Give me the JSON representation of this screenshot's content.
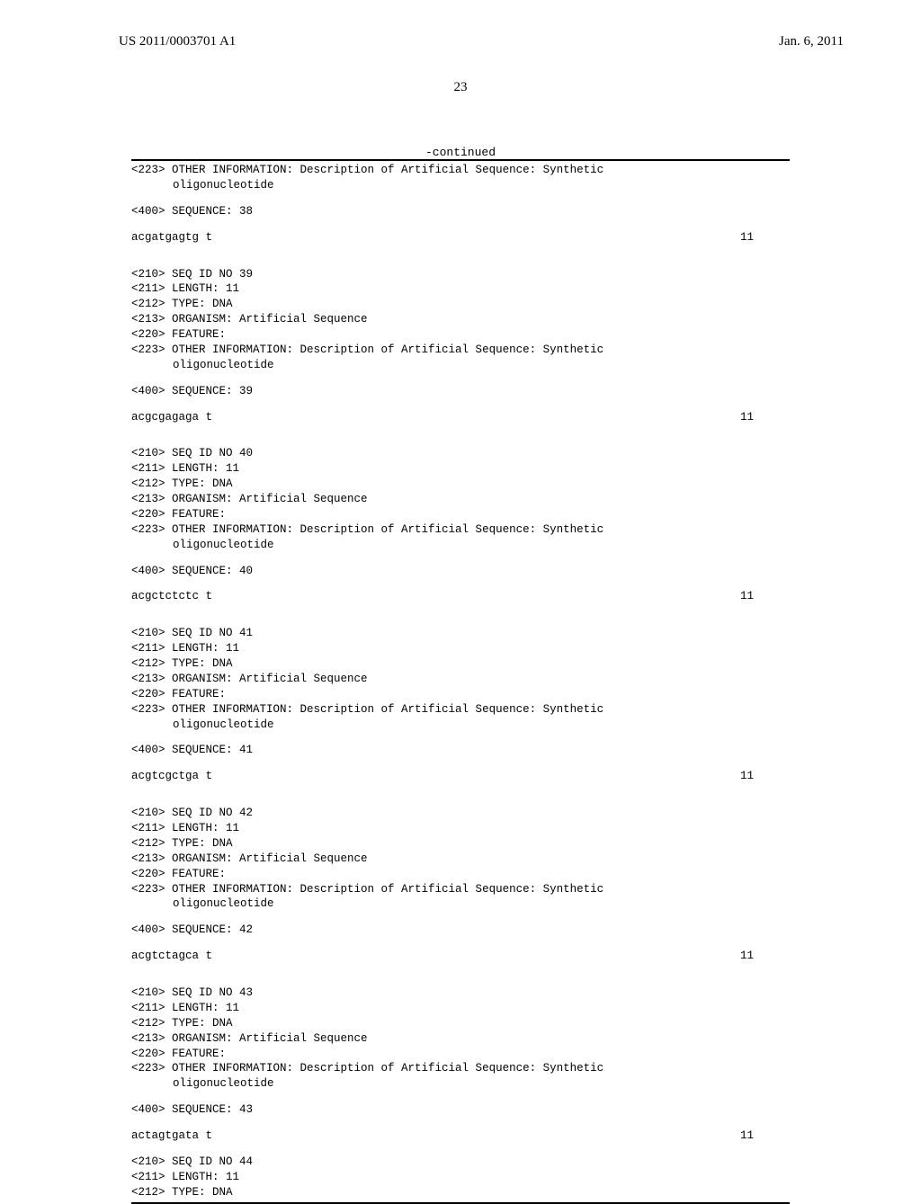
{
  "header": {
    "pub_number": "US 2011/0003701 A1",
    "pub_date": "Jan. 6, 2011"
  },
  "page_number": "23",
  "continued_label": "-continued",
  "typography": {
    "header_font": "Times New Roman",
    "header_fontsize": 15,
    "body_font": "Courier New",
    "body_fontsize": 12.5,
    "page_number_fontsize": 15
  },
  "colors": {
    "background": "#ffffff",
    "text": "#000000",
    "rule": "#000000"
  },
  "seq_top": {
    "lines": [
      "<223> OTHER INFORMATION: Description of Artificial Sequence: Synthetic",
      "oligonucleotide"
    ],
    "seq_label": "<400> SEQUENCE: 38",
    "sequence": "acgatgagtg t",
    "seq_len": "11"
  },
  "sequences": [
    {
      "seq_id": "<210> SEQ ID NO 39",
      "length": "<211> LENGTH: 11",
      "type": "<212> TYPE: DNA",
      "organism": "<213> ORGANISM: Artificial Sequence",
      "feature": "<220> FEATURE:",
      "other_info": "<223> OTHER INFORMATION: Description of Artificial Sequence: Synthetic",
      "other_info_cont": "oligonucleotide",
      "seq_label": "<400> SEQUENCE: 39",
      "sequence": "acgcgagaga t",
      "seq_len": "11"
    },
    {
      "seq_id": "<210> SEQ ID NO 40",
      "length": "<211> LENGTH: 11",
      "type": "<212> TYPE: DNA",
      "organism": "<213> ORGANISM: Artificial Sequence",
      "feature": "<220> FEATURE:",
      "other_info": "<223> OTHER INFORMATION: Description of Artificial Sequence: Synthetic",
      "other_info_cont": "oligonucleotide",
      "seq_label": "<400> SEQUENCE: 40",
      "sequence": "acgctctctc t",
      "seq_len": "11"
    },
    {
      "seq_id": "<210> SEQ ID NO 41",
      "length": "<211> LENGTH: 11",
      "type": "<212> TYPE: DNA",
      "organism": "<213> ORGANISM: Artificial Sequence",
      "feature": "<220> FEATURE:",
      "other_info": "<223> OTHER INFORMATION: Description of Artificial Sequence: Synthetic",
      "other_info_cont": "oligonucleotide",
      "seq_label": "<400> SEQUENCE: 41",
      "sequence": "acgtcgctga t",
      "seq_len": "11"
    },
    {
      "seq_id": "<210> SEQ ID NO 42",
      "length": "<211> LENGTH: 11",
      "type": "<212> TYPE: DNA",
      "organism": "<213> ORGANISM: Artificial Sequence",
      "feature": "<220> FEATURE:",
      "other_info": "<223> OTHER INFORMATION: Description of Artificial Sequence: Synthetic",
      "other_info_cont": "oligonucleotide",
      "seq_label": "<400> SEQUENCE: 42",
      "sequence": "acgtctagca t",
      "seq_len": "11"
    },
    {
      "seq_id": "<210> SEQ ID NO 43",
      "length": "<211> LENGTH: 11",
      "type": "<212> TYPE: DNA",
      "organism": "<213> ORGANISM: Artificial Sequence",
      "feature": "<220> FEATURE:",
      "other_info": "<223> OTHER INFORMATION: Description of Artificial Sequence: Synthetic",
      "other_info_cont": "oligonucleotide",
      "seq_label": "<400> SEQUENCE: 43",
      "sequence": "actagtgata t",
      "seq_len": "11"
    }
  ],
  "seq_bottom": {
    "seq_id": "<210> SEQ ID NO 44",
    "length": "<211> LENGTH: 11",
    "type": "<212> TYPE: DNA"
  }
}
